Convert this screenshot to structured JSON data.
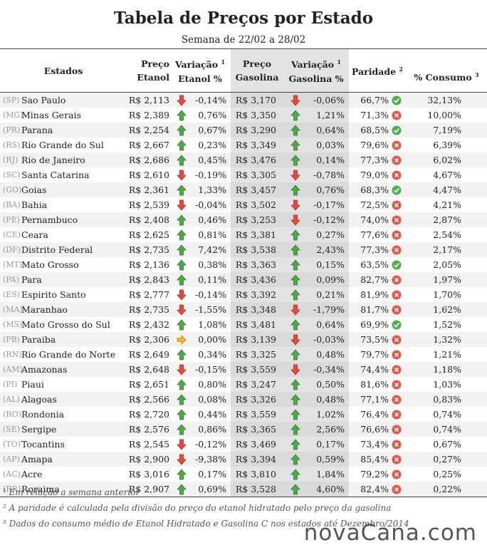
{
  "title": "Tabela de Preços por Estado",
  "subtitle": "Semana de 22/02 a 28/02",
  "table": {
    "headers": [
      {
        "lines": [
          "Estados"
        ]
      },
      {
        "lines": [
          "Preço",
          "Etanol"
        ]
      },
      {
        "lines": [
          "Variação",
          "Etanol %"
        ],
        "sup": "1"
      },
      {
        "lines": [
          "Preço",
          "Gasolina"
        ]
      },
      {
        "lines": [
          "Variação",
          "Gasolina %"
        ],
        "sup": "1"
      },
      {
        "lines": [
          "Paridade"
        ],
        "sup": "2"
      },
      {
        "lines": [
          "% Consumo"
        ],
        "sup": "3"
      }
    ],
    "rows": [
      [
        "(SP)",
        "Sao Paulo",
        "R$ 2,113",
        "-0,14%",
        "R$ 3,170",
        "-0,06%",
        "66,7%",
        "32,13%"
      ],
      [
        "(MG)",
        "Minas Gerais",
        "R$ 2,389",
        "0,76%",
        "R$ 3,350",
        "1,21%",
        "71,3%",
        "10,00%"
      ],
      [
        "(PR)",
        "Parana",
        "R$ 2,254",
        "0,67%",
        "R$ 3,290",
        "0,64%",
        "68,5%",
        "7,19%"
      ],
      [
        "(RS)",
        "Rio Grande do Sul",
        "R$ 2,667",
        "0,23%",
        "R$ 3,349",
        "0,03%",
        "79,6%",
        "6,39%"
      ],
      [
        "(RJ)",
        "Rio de Janeiro",
        "R$ 2,686",
        "0,45%",
        "R$ 3,476",
        "0,14%",
        "77,3%",
        "6,02%"
      ],
      [
        "(SC)",
        "Santa Catarina",
        "R$ 2,610",
        "-0,19%",
        "R$ 3,305",
        "-0,78%",
        "79,0%",
        "4,67%"
      ],
      [
        "(GO)",
        "Goias",
        "R$ 2,361",
        "1,33%",
        "R$ 3,457",
        "0,76%",
        "68,3%",
        "4,47%"
      ],
      [
        "(BA)",
        "Bahia",
        "R$ 2,539",
        "-0,04%",
        "R$ 3,502",
        "-0,17%",
        "72,5%",
        "4,21%"
      ],
      [
        "(PE)",
        "Pernambuco",
        "R$ 2,408",
        "0,46%",
        "R$ 3,253",
        "-0,12%",
        "74,0%",
        "2,87%"
      ],
      [
        "(CE)",
        "Ceara",
        "R$ 2,625",
        "0,81%",
        "R$ 3,381",
        "0,27%",
        "77,6%",
        "2,54%"
      ],
      [
        "(DF)",
        "Distrito Federal",
        "R$ 2,735",
        "7,42%",
        "R$ 3,538",
        "2,43%",
        "77,3%",
        "2,17%"
      ],
      [
        "(MT)",
        "Mato Grosso",
        "R$ 2,136",
        "0,38%",
        "R$ 3,363",
        "0,15%",
        "63,5%",
        "2,05%"
      ],
      [
        "(PA)",
        "Para",
        "R$ 2,843",
        "0,11%",
        "R$ 3,436",
        "0,09%",
        "82,7%",
        "1,97%"
      ],
      [
        "(ES)",
        "Espirito Santo",
        "R$ 2,777",
        "-0,14%",
        "R$ 3,392",
        "0,21%",
        "81,9%",
        "1,70%"
      ],
      [
        "(MA)",
        "Maranhao",
        "R$ 2,735",
        "-1,55%",
        "R$ 3,348",
        "-1,79%",
        "81,7%",
        "1,62%"
      ],
      [
        "(MS)",
        "Mato Grosso do Sul",
        "R$ 2,432",
        "1,08%",
        "R$ 3,481",
        "0,64%",
        "69,9%",
        "1,52%"
      ],
      [
        "(PB)",
        "Paraiba",
        "R$ 2,306",
        "0,00%",
        "R$ 3,139",
        "-0,03%",
        "73,5%",
        "1,32%"
      ],
      [
        "(RN)",
        "Rio Grande do Norte",
        "R$ 2,649",
        "0,34%",
        "R$ 3,325",
        "0,48%",
        "79,7%",
        "1,21%"
      ],
      [
        "(AM)",
        "Amazonas",
        "R$ 2,648",
        "-0,15%",
        "R$ 3,559",
        "-0,34%",
        "74,4%",
        "1,18%"
      ],
      [
        "(PI)",
        "Piaui",
        "R$ 2,651",
        "0,80%",
        "R$ 3,247",
        "0,50%",
        "81,6%",
        "1,03%"
      ],
      [
        "(AL)",
        "Alagoas",
        "R$ 2,566",
        "0,08%",
        "R$ 3,326",
        "0,48%",
        "77,1%",
        "0,83%"
      ],
      [
        "(RO)",
        "Rondonia",
        "R$ 2,720",
        "0,44%",
        "R$ 3,559",
        "1,02%",
        "76,4%",
        "0,74%"
      ],
      [
        "(SE)",
        "Sergipe",
        "R$ 2,576",
        "0,86%",
        "R$ 3,365",
        "2,56%",
        "76,6%",
        "0,74%"
      ],
      [
        "(TO)",
        "Tocantins",
        "R$ 2,545",
        "-0,12%",
        "R$ 3,469",
        "0,17%",
        "73,4%",
        "0,67%"
      ],
      [
        "(AP)",
        "Amapa",
        "R$ 2,900",
        "-9,38%",
        "R$ 3,394",
        "0,59%",
        "85,4%",
        "0,27%"
      ],
      [
        "(AC)",
        "Acre",
        "R$ 3,016",
        "0,17%",
        "R$ 3,810",
        "1,84%",
        "79,2%",
        "0,25%"
      ],
      [
        "(RR)",
        "Roraima",
        "R$ 2,907",
        "0,69%",
        "R$ 3,528",
        "4,60%",
        "82,4%",
        "0,22%"
      ]
    ]
  },
  "footnotes": [
    "¹ Em relação a semana anterior",
    "² A paridade é calculada pela divisão do preço do etanol hidratado pelo preço da gasolina",
    "³ Dados do consumo médio de Etanol Hidratado e Gasolina C nos estados até Dezembro/2014"
  ],
  "logo": "novaCana.com"
}
